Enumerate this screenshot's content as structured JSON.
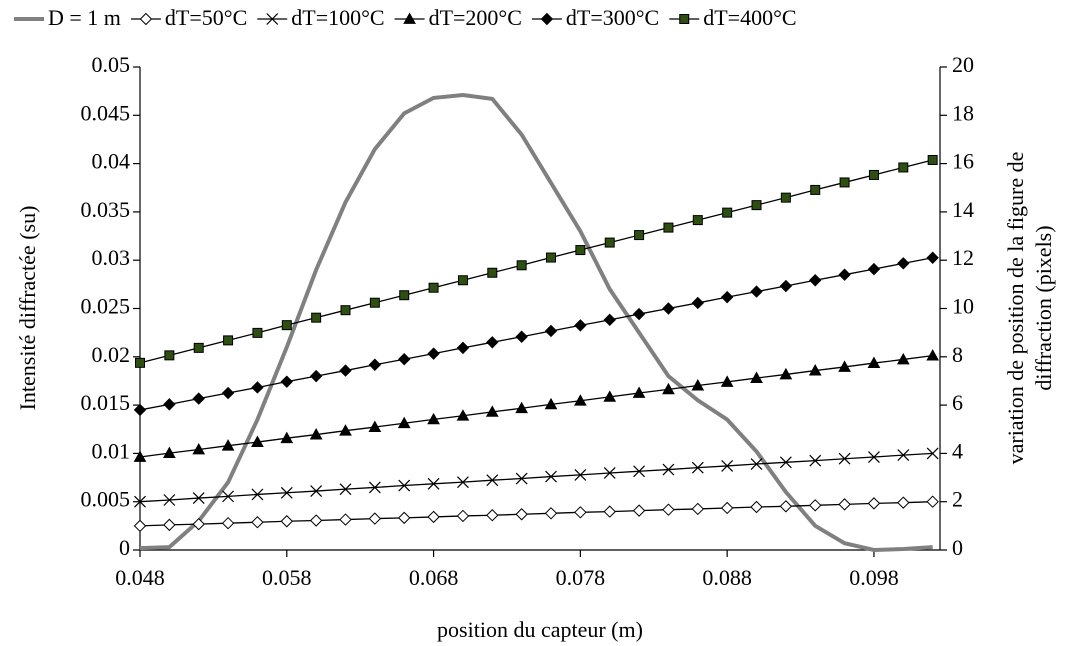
{
  "chart_data": {
    "type": "line",
    "xlabel": "position du capteur (m)",
    "ylabel": "Intensité diffractée (su)",
    "y2label": [
      "variation de position de la figure de",
      "diffraction (pixels)"
    ],
    "x": [
      0.048,
      0.05,
      0.052,
      0.054,
      0.056,
      0.058,
      0.06,
      0.062,
      0.064,
      0.066,
      0.068,
      0.07,
      0.072,
      0.074,
      0.076,
      0.078,
      0.08,
      0.082,
      0.084,
      0.086,
      0.088,
      0.09,
      0.092,
      0.094,
      0.096,
      0.098,
      0.1,
      0.102
    ],
    "xlim": [
      0.048,
      0.1025
    ],
    "xticks": [
      0.048,
      0.058,
      0.068,
      0.078,
      0.088,
      0.098
    ],
    "ylim": [
      0,
      0.05
    ],
    "yticks": [
      0,
      0.005,
      0.01,
      0.015,
      0.02,
      0.025,
      0.03,
      0.035,
      0.04,
      0.045,
      0.05
    ],
    "y2lim": [
      0,
      20
    ],
    "y2ticks": [
      0,
      2,
      4,
      6,
      8,
      10,
      12,
      14,
      16,
      18,
      20
    ],
    "legend": "top",
    "series": [
      {
        "name": "D = 1 m",
        "color": "#808080",
        "marker": "none",
        "values": [
          0.0002,
          0.0003,
          0.003,
          0.007,
          0.0135,
          0.021,
          0.029,
          0.036,
          0.0415,
          0.0452,
          0.0468,
          0.0471,
          0.0467,
          0.043,
          0.038,
          0.033,
          0.027,
          0.0225,
          0.018,
          0.0155,
          0.0135,
          0.0102,
          0.006,
          0.0025,
          0.0007,
          0,
          0.0001,
          0.0003
        ]
      },
      {
        "name": "dT=50°C",
        "color": "#000000",
        "marker": "diamond-open",
        "axis": "y2",
        "values": [
          1.0,
          1.04,
          1.07,
          1.11,
          1.15,
          1.19,
          1.22,
          1.26,
          1.3,
          1.33,
          1.37,
          1.41,
          1.44,
          1.48,
          1.52,
          1.56,
          1.59,
          1.63,
          1.67,
          1.7,
          1.74,
          1.78,
          1.81,
          1.85,
          1.89,
          1.93,
          1.96,
          2.0
        ]
      },
      {
        "name": "dT=100°C",
        "color": "#000000",
        "marker": "cross",
        "axis": "y2",
        "values": [
          2.0,
          2.07,
          2.15,
          2.22,
          2.3,
          2.37,
          2.44,
          2.52,
          2.59,
          2.67,
          2.74,
          2.81,
          2.89,
          2.96,
          3.04,
          3.11,
          3.19,
          3.26,
          3.33,
          3.41,
          3.48,
          3.56,
          3.63,
          3.7,
          3.78,
          3.85,
          3.93,
          4.0
        ]
      },
      {
        "name": "dT=200°C",
        "color": "#000000",
        "marker": "triangle",
        "axis": "y2",
        "values": [
          3.85,
          4.01,
          4.16,
          4.32,
          4.47,
          4.63,
          4.78,
          4.94,
          5.09,
          5.25,
          5.41,
          5.56,
          5.72,
          5.87,
          6.03,
          6.18,
          6.34,
          6.5,
          6.65,
          6.81,
          6.96,
          7.12,
          7.27,
          7.43,
          7.58,
          7.74,
          7.89,
          8.05
        ]
      },
      {
        "name": "dT=300°C",
        "color": "#000000",
        "marker": "diamond",
        "axis": "y2",
        "values": [
          5.8,
          6.03,
          6.27,
          6.5,
          6.73,
          6.97,
          7.2,
          7.43,
          7.67,
          7.9,
          8.13,
          8.37,
          8.6,
          8.83,
          9.07,
          9.3,
          9.53,
          9.77,
          10.0,
          10.23,
          10.47,
          10.7,
          10.93,
          11.17,
          11.4,
          11.63,
          11.87,
          12.1
        ]
      },
      {
        "name": "dT=400°C",
        "color": "#2d4f12",
        "marker": "square",
        "axis": "y2",
        "values": [
          7.75,
          8.06,
          8.37,
          8.68,
          8.99,
          9.31,
          9.62,
          9.93,
          10.24,
          10.55,
          10.86,
          11.17,
          11.48,
          11.79,
          12.11,
          12.42,
          12.73,
          13.04,
          13.35,
          13.66,
          13.97,
          14.28,
          14.59,
          14.91,
          15.22,
          15.53,
          15.84,
          16.15
        ]
      }
    ]
  }
}
